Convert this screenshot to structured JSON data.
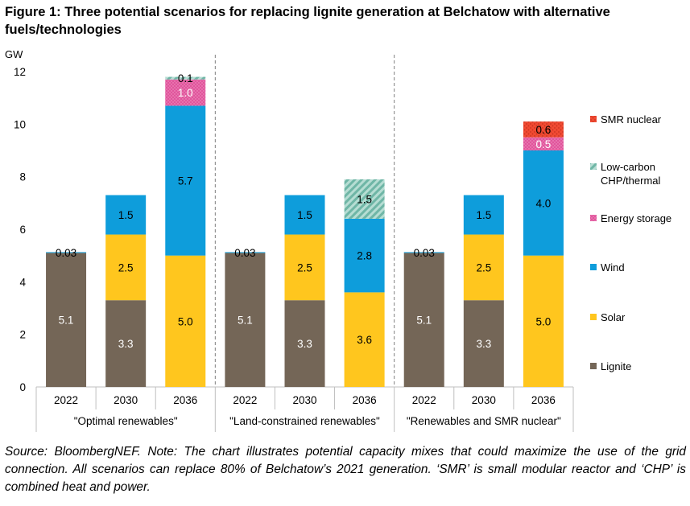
{
  "title": "Figure 1: Three potential scenarios for replacing lignite generation at Belchatow with alternative fuels/technologies",
  "footnote": "Source: BloombergNEF. Note: The chart illustrates potential capacity mixes that could maximize the use of the grid connection. All scenarios can replace 80% of Belchatow’s 2021 generation. ‘SMR’ is small modular reactor and ‘CHP’ is combined heat and power.",
  "chart_data": {
    "type": "bar",
    "stacked": true,
    "ylabel": "GW",
    "ylim": [
      0,
      12
    ],
    "yticks": [
      0,
      2,
      4,
      6,
      8,
      10,
      12
    ],
    "grid": false,
    "legend_position": "right",
    "groups": [
      {
        "label": "\"Optimal renewables\"",
        "categories": [
          "2022",
          "2030",
          "2036"
        ]
      },
      {
        "label": "\"Land-constrained renewables\"",
        "categories": [
          "2022",
          "2030",
          "2036"
        ]
      },
      {
        "label": "\"Renewables and SMR nuclear\"",
        "categories": [
          "2022",
          "2030",
          "2036"
        ]
      }
    ],
    "categories": [
      "2022",
      "2030",
      "2036",
      "2022",
      "2030",
      "2036",
      "2022",
      "2030",
      "2036"
    ],
    "series": [
      {
        "name": "Lignite",
        "color": "#746657",
        "values": [
          5.1,
          3.3,
          0,
          5.1,
          3.3,
          0,
          5.1,
          3.3,
          0
        ],
        "labels": [
          "5.1",
          "3.3",
          "",
          "5.1",
          "3.3",
          "",
          "5.1",
          "3.3",
          ""
        ]
      },
      {
        "name": "Solar",
        "color": "#FFC61E",
        "values": [
          0,
          2.5,
          5.0,
          0,
          2.5,
          3.6,
          0,
          2.5,
          5.0
        ],
        "labels": [
          "",
          "2.5",
          "5.0",
          "",
          "2.5",
          "3.6",
          "",
          "2.5",
          "5.0"
        ]
      },
      {
        "name": "Wind",
        "color": "#0E9DDB",
        "values": [
          0.03,
          1.5,
          5.7,
          0.03,
          1.5,
          2.8,
          0.03,
          1.5,
          4.0
        ],
        "labels": [
          "0.03",
          "1.5",
          "5.7",
          "0.03",
          "1.5",
          "2.8",
          "0.03",
          "1.5",
          "4.0"
        ]
      },
      {
        "name": "Energy storage",
        "color": "#E0559C",
        "values": [
          0,
          0,
          1.0,
          0,
          0,
          0,
          0,
          0,
          0.5
        ],
        "labels": [
          "",
          "",
          "1.0",
          "",
          "",
          "",
          "",
          "",
          "0.5"
        ]
      },
      {
        "name": "Low-carbon CHP/thermal",
        "color": "#7FC2B3",
        "values": [
          0,
          0,
          0.1,
          0,
          0,
          1.5,
          0,
          0,
          0
        ],
        "labels": [
          "",
          "",
          "0.1",
          "",
          "",
          "1.5",
          "",
          "",
          ""
        ]
      },
      {
        "name": "SMR nuclear",
        "color": "#F04A32",
        "values": [
          0,
          0,
          0,
          0,
          0,
          0,
          0,
          0,
          0.6
        ],
        "labels": [
          "",
          "",
          "",
          "",
          "",
          "",
          "",
          "",
          "0.6"
        ]
      }
    ],
    "legend_order": [
      {
        "name": "SMR nuclear",
        "lines": [
          "SMR nuclear"
        ]
      },
      {
        "name": "Low-carbon CHP/thermal",
        "lines": [
          "Low-carbon",
          "CHP/thermal"
        ]
      },
      {
        "name": "Energy storage",
        "lines": [
          "Energy storage"
        ]
      },
      {
        "name": "Wind",
        "lines": [
          "Wind"
        ]
      },
      {
        "name": "Solar",
        "lines": [
          "Solar"
        ]
      },
      {
        "name": "Lignite",
        "lines": [
          "Lignite"
        ]
      }
    ]
  }
}
